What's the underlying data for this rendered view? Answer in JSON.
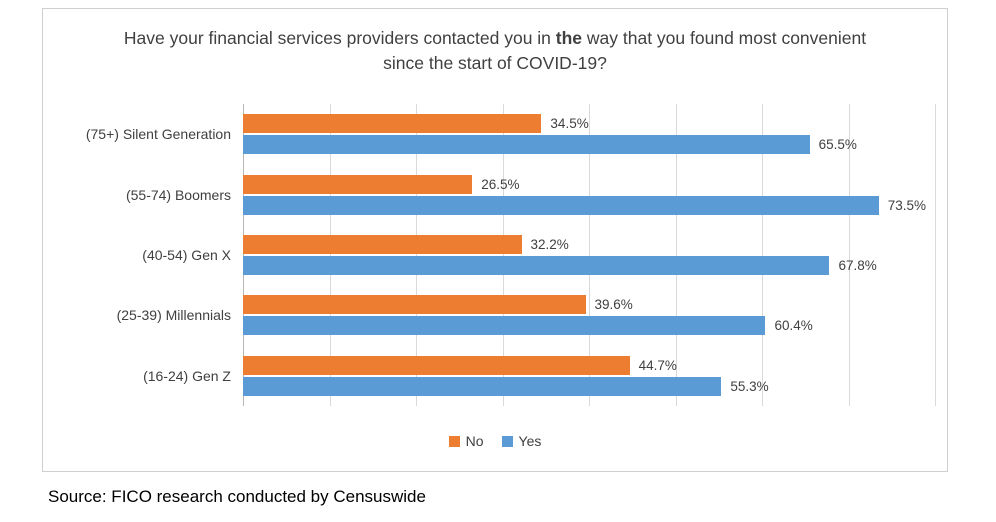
{
  "title": {
    "part1": "Have your financial services providers contacted you in ",
    "bold": "the",
    "part2": " way that you found most convenient since the start of COVID-19?"
  },
  "legend": [
    {
      "label": "No",
      "color": "#ED7D31"
    },
    {
      "label": "Yes",
      "color": "#5B9BD5"
    }
  ],
  "source": "Source: FICO research conducted by Censuswide",
  "chart_data": {
    "type": "bar",
    "orientation": "horizontal",
    "title": "Have your financial services providers contacted you in the way that you found most convenient since the start of COVID-19?",
    "categories": [
      "(75+) Silent Generation",
      "(55-74) Boomers",
      "(40-54) Gen X",
      "(25-39) Millennials",
      "(16-24) Gen Z"
    ],
    "series": [
      {
        "name": "No",
        "color": "#ED7D31",
        "values": [
          34.5,
          26.5,
          32.2,
          39.6,
          44.7
        ]
      },
      {
        "name": "Yes",
        "color": "#5B9BD5",
        "values": [
          65.5,
          73.5,
          67.8,
          60.4,
          55.3
        ]
      }
    ],
    "value_suffix": "%",
    "xlim": [
      0,
      80
    ],
    "grid": true,
    "gridline_count": 9,
    "legend_position": "bottom"
  }
}
